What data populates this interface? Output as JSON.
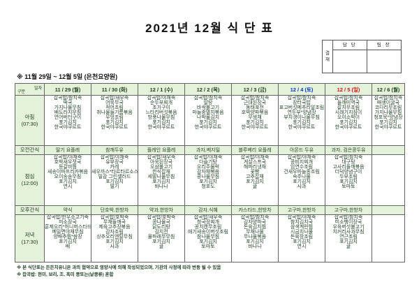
{
  "title": "2021년 12월 식 단 표",
  "subtitle": "※ 11월 29일 ~ 12월 5일 (은천요양원)",
  "approval": {
    "stamp": "결재",
    "columns": [
      "담 당",
      "팀 장"
    ]
  },
  "table": {
    "corner": {
      "top": "일자",
      "bottom": "구분"
    },
    "columns": [
      {
        "label": "11 / 29 (월)"
      },
      {
        "label": "11 / 30 (화)"
      },
      {
        "label": "12 / 1 (수)"
      },
      {
        "label": "12 / 2 (목)"
      },
      {
        "label": "12 / 3 (금)"
      },
      {
        "label": "12 / 4 (토)",
        "color": "#0033cc"
      },
      {
        "label": "12 / 5 (일)",
        "color": "#dd1111"
      },
      {
        "label": "12 / 6 (월)"
      }
    ],
    "rows": [
      {
        "label": [
          "아침",
          "(07:30)"
        ],
        "type": "meal",
        "cells": [
          [
            "잡곡밥/참치죽",
            "떡국",
            "가지나물무침",
            "배도라지무침",
            "연어버터구이",
            "포기김치",
            "한국야쿠르트"
          ],
          [
            "잡곡밥/새우죽",
            "어묵무국",
            "적어조림",
            "취나물들기름볶음",
            "우엉조림",
            "포기김치",
            "한국야쿠르트"
          ],
          [
            "잡곡밥/야채죽",
            "순두부찌개",
            "조기구이",
            "느타리버섯볶음",
            "방풍나물무침",
            "포기김치",
            "한국야쿠르트"
          ],
          [
            "잡곡밥/참치죽",
            "알탕",
            "바싹불고기",
            "마늘종멸치볶음",
            "나박물김치",
            "포기김치",
            "한국야쿠르트"
          ],
          [
            "잡곡밥/참치죽",
            "근대된장국",
            "동태포전",
            "호박양파볶음",
            "무생채",
            "포기김치",
            "한국야쿠르트"
          ],
          [
            "잡곡밥/참치죽",
            "장터국밥",
            "표고버섯메추리알조림",
            "연두부*양념장",
            "부지갱이나물무침",
            "포기김치",
            "한국야쿠르트"
          ],
          [
            "잡곡밥/참치죽",
            "들깨미역국",
            "갈치무조림",
            "시래기지짐이",
            "오이소박이",
            "포기김치",
            "한국야쿠르트"
          ],
          [
            "잡곡밥/참치죽",
            "매생이굴국",
            "코다리무조림",
            "가지나물무침",
            "청포묵*양념장",
            "포기김치",
            "한국야쿠르트"
          ]
        ]
      },
      {
        "label": [
          "오전간식"
        ],
        "type": "snack",
        "cells": [
          "딸기 요플레",
          "참깨두유",
          "플레인 요플레",
          "과자,베지밀",
          "블루베리 요플레",
          "아몬드 두유",
          "과자, 검은콩두유",
          ""
        ]
      },
      {
        "label": [
          "점심",
          "(12:00)"
        ],
        "type": "meal",
        "cells": [
          [
            "잡곡밥/야채죽",
            "호박새우젓국",
            "등갈비찜",
            "새송이파프리카볶음",
            "오이송송무침",
            "포기김치",
            "연시"
          ],
          [
            "잡곡밥/야채죽",
            "유부장국",
            "카레",
            "새우까스*타르타르소스",
            "밀감 그린샐러드",
            "포기김치",
            "딸기"
          ],
          [
            "잡곡밥/새우죽",
            "아욱된장국",
            "오삼불고기",
            "한식잡채",
            "세발나물무침",
            "포기김치",
            "바나나"
          ],
          [
            "잡곡밥/야채죽",
            "다슬기탕",
            "오리주물럭",
            "감자채볶음",
            "콩나물무침",
            "포기김치",
            "청포도"
          ],
          [
            "잡곡밥/야채죽",
            "게살스프국",
            "해파리냉채",
            "꽃빵",
            "고추잡채",
            "포기김치",
            "귤"
          ],
          [
            "잡곡밥/야채죽",
            "콩비지찌개",
            "임연수조림",
            "건새우마늘종조림",
            "숙주나물",
            "포기김치",
            "사과"
          ],
          [
            "잡곡밥/참치죽",
            "대구탕",
            "고사리들깨볶음",
            "더덕양념구이",
            "두부조림",
            "포기김치",
            "토마토"
          ],
          []
        ]
      },
      {
        "label": [
          "오후간식"
        ],
        "type": "snack",
        "cells": [
          "약식",
          "단호박,한방차",
          "약과,한방차",
          "감자,식혜",
          "카스타드,한방차",
          "고구마,한방차",
          "고구마,한방차",
          ""
        ]
      },
      {
        "label": [
          "저녁",
          "(17:30)"
        ],
        "type": "meal",
        "cells": [
          [
            "잡곡밥/한우소고기죽",
            "미소장국",
            "훈제오리*허니머스타드",
            "메밀면야채무침",
            "양배추찜*쌈장",
            "포기김치",
            "배"
          ],
          [
            "잡곡밥/호박죽",
            "무채들깨국",
            "제육고추장볶음",
            "감자조림",
            "상추오리엔탈무침",
            "포기김치",
            "사과"
          ],
          [
            "잡곡밥/호박죽",
            "콩나물국",
            "닭도리탕",
            "김치전",
            "물파래무무침",
            "포기김치",
            "귤"
          ],
          [
            "잡곡밥/새우죽",
            "청국장찌개",
            "꽁치캔무조림",
            "애기새송이버섯조림",
            "참나물무침",
            "포기김치",
            "토마토"
          ],
          [
            "잡곡밥/참치죽",
            "감자양파국",
            "돈육김치찜",
            "무채나물",
            "무나물볶음",
            "포기김치",
            "바나나"
          ],
          [
            "잡곡밥/야채죽",
            "참치김치국",
            "삼색계란찜",
            "시금치나물",
            "돈육장조림",
            "포기김치",
            "연시"
          ],
          [
            "잡곡밥/참치죽",
            "미소팽이장국",
            "우육버섯불고기",
            "치커리사과무침",
            "연근조림",
            "포기김치",
            "귤"
          ],
          []
        ]
      }
    ]
  },
  "notes": [
    "※ 본 식단표는 든든치유니온 과의 협약으로 영양사에 의해 작성되었으며, 기관의 사정에 따라 변동 될 수 있음",
    "※ 잡곡밥: 현미, 보리, 조, 흑미 콩또는(낱콩류) 혼합"
  ]
}
